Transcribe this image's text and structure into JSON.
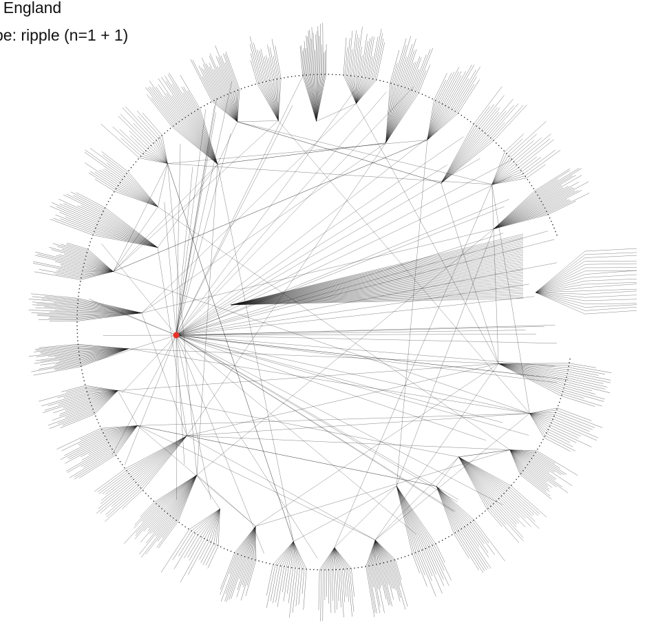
{
  "caption": {
    "node_line": ": England",
    "type_line": "pe: ripple (n=1 + 1)"
  },
  "colors": {
    "background": "#ffffff",
    "edge": "#1a1a1a",
    "node": "#222222",
    "focus_node": "#e8312a",
    "text": "#111111"
  }
}
